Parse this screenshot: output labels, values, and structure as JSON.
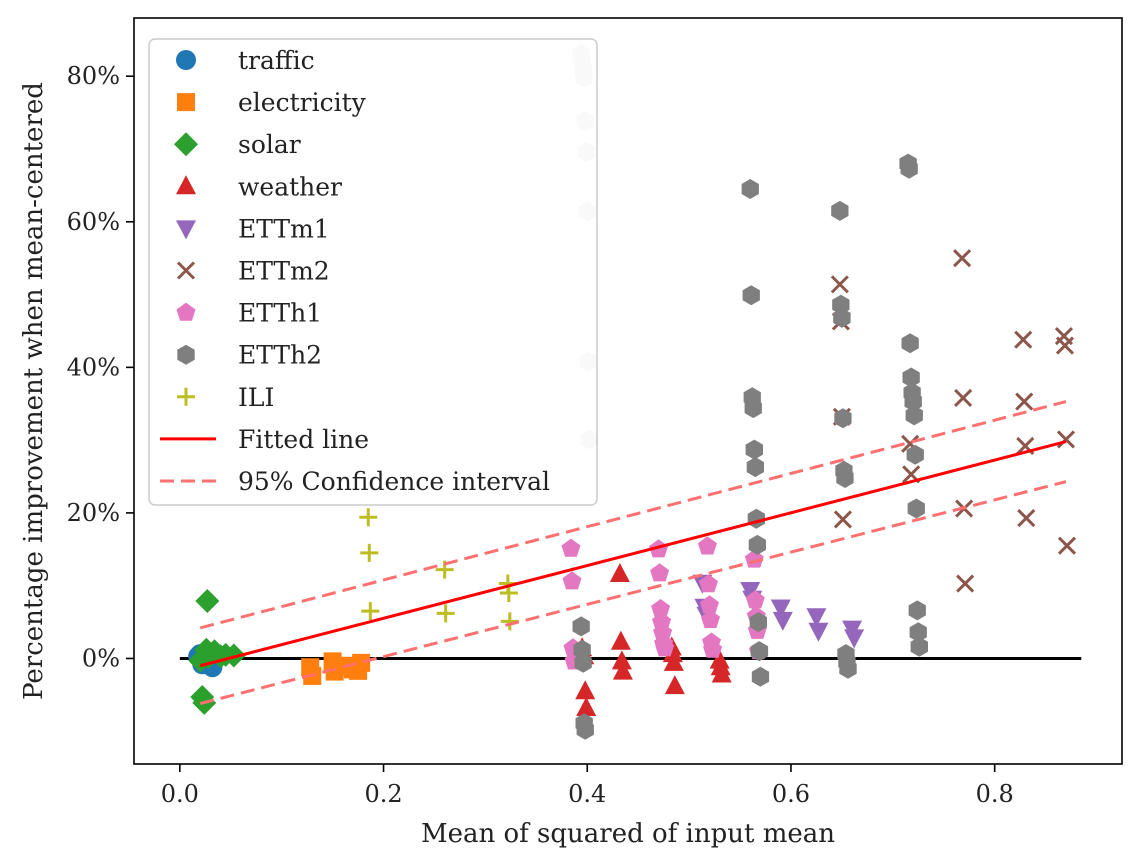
{
  "chart_data": {
    "type": "scatter",
    "xlabel": "Mean of squared of input mean",
    "ylabel": "Percentage improvement when mean-centered",
    "xlim": [
      -0.045,
      0.925
    ],
    "ylim": [
      -14.5,
      88
    ],
    "xticks": [
      0.0,
      0.2,
      0.4,
      0.6,
      0.8
    ],
    "xtick_labels": [
      "0.0",
      "0.2",
      "0.4",
      "0.6",
      "0.8"
    ],
    "yticks": [
      0,
      20,
      40,
      60,
      80
    ],
    "ytick_labels": [
      "0%",
      "20%",
      "40%",
      "60%",
      "80%"
    ],
    "legend_position": "upper-left",
    "series": [
      {
        "name": "traffic",
        "marker": "circle",
        "color": "#1f77b4",
        "points": [
          [
            0.018,
            0.3
          ],
          [
            0.022,
            -0.8
          ],
          [
            0.025,
            -0.3
          ],
          [
            0.028,
            0.8
          ],
          [
            0.032,
            -1.2
          ],
          [
            0.035,
            0.1
          ],
          [
            0.02,
            0.6
          ],
          [
            0.03,
            -0.5
          ]
        ]
      },
      {
        "name": "electricity",
        "marker": "square",
        "color": "#ff7f0e",
        "points": [
          [
            0.128,
            -1.2
          ],
          [
            0.13,
            -2.4
          ],
          [
            0.15,
            -0.4
          ],
          [
            0.152,
            -1.8
          ],
          [
            0.165,
            -1.0
          ],
          [
            0.17,
            -1.5
          ],
          [
            0.175,
            -1.7
          ],
          [
            0.178,
            -0.6
          ]
        ]
      },
      {
        "name": "solar",
        "marker": "diamond",
        "color": "#2ca02c",
        "points": [
          [
            0.027,
            7.9
          ],
          [
            0.022,
            -5.3
          ],
          [
            0.024,
            -6.1
          ],
          [
            0.026,
            1.2
          ],
          [
            0.03,
            0.6
          ],
          [
            0.034,
            1.0
          ],
          [
            0.04,
            0.3
          ],
          [
            0.045,
            0.5
          ],
          [
            0.053,
            0.4
          ],
          [
            0.02,
            -0.3
          ],
          [
            0.028,
            0.2
          ]
        ]
      },
      {
        "name": "weather",
        "marker": "triangle-up",
        "color": "#d62728",
        "points": [
          [
            0.395,
            1.4
          ],
          [
            0.397,
            0.3
          ],
          [
            0.398,
            -4.5
          ],
          [
            0.399,
            -6.8
          ],
          [
            0.432,
            11.6
          ],
          [
            0.433,
            2.3
          ],
          [
            0.434,
            -0.4
          ],
          [
            0.435,
            -1.8
          ],
          [
            0.483,
            1.5
          ],
          [
            0.484,
            0.6
          ],
          [
            0.485,
            -0.6
          ],
          [
            0.486,
            -3.8
          ],
          [
            0.53,
            -0.3
          ],
          [
            0.531,
            -1.2
          ],
          [
            0.532,
            -2.2
          ]
        ]
      },
      {
        "name": "ETTm1",
        "marker": "triangle-down",
        "color": "#9467bd",
        "points": [
          [
            0.513,
            10.4
          ],
          [
            0.515,
            7.1
          ],
          [
            0.517,
            6.0
          ],
          [
            0.56,
            9.4
          ],
          [
            0.562,
            8.2
          ],
          [
            0.59,
            7.0
          ],
          [
            0.592,
            5.3
          ],
          [
            0.625,
            5.8
          ],
          [
            0.627,
            3.8
          ],
          [
            0.66,
            4.1
          ],
          [
            0.662,
            2.9
          ]
        ]
      },
      {
        "name": "ETTm2",
        "marker": "x",
        "color": "#8c564b",
        "points": [
          [
            0.648,
            51.4
          ],
          [
            0.649,
            46.3
          ],
          [
            0.65,
            33.2
          ],
          [
            0.651,
            19.1
          ],
          [
            0.717,
            29.5
          ],
          [
            0.718,
            25.3
          ],
          [
            0.768,
            55.0
          ],
          [
            0.769,
            35.8
          ],
          [
            0.77,
            20.6
          ],
          [
            0.771,
            10.3
          ],
          [
            0.828,
            43.8
          ],
          [
            0.829,
            35.3
          ],
          [
            0.83,
            29.2
          ],
          [
            0.831,
            19.3
          ],
          [
            0.868,
            44.3
          ],
          [
            0.869,
            43.0
          ],
          [
            0.87,
            30.1
          ],
          [
            0.871,
            15.5
          ]
        ]
      },
      {
        "name": "ETTh1",
        "marker": "pentagon",
        "color": "#e377c2",
        "points": [
          [
            0.384,
            15.1
          ],
          [
            0.385,
            10.6
          ],
          [
            0.386,
            1.4
          ],
          [
            0.387,
            -0.4
          ],
          [
            0.47,
            15.0
          ],
          [
            0.471,
            11.7
          ],
          [
            0.472,
            6.8
          ],
          [
            0.473,
            5.0
          ],
          [
            0.474,
            3.5
          ],
          [
            0.475,
            2.0
          ],
          [
            0.476,
            1.4
          ],
          [
            0.518,
            15.4
          ],
          [
            0.519,
            10.2
          ],
          [
            0.52,
            7.3
          ],
          [
            0.521,
            5.3
          ],
          [
            0.522,
            2.2
          ],
          [
            0.523,
            1.2
          ],
          [
            0.564,
            13.6
          ],
          [
            0.565,
            8.0
          ],
          [
            0.566,
            5.8
          ],
          [
            0.567,
            3.8
          ],
          [
            0.568,
            1.0
          ]
        ]
      },
      {
        "name": "ETTh2",
        "marker": "hexagon",
        "color": "#7f7f7f",
        "points": [
          [
            0.394,
            4.4
          ],
          [
            0.395,
            1.2
          ],
          [
            0.396,
            -0.6
          ],
          [
            0.397,
            -8.9
          ],
          [
            0.398,
            -9.8
          ],
          [
            0.56,
            64.5
          ],
          [
            0.561,
            49.9
          ],
          [
            0.562,
            35.9
          ],
          [
            0.563,
            34.4
          ],
          [
            0.564,
            28.7
          ],
          [
            0.565,
            26.3
          ],
          [
            0.566,
            19.2
          ],
          [
            0.567,
            15.6
          ],
          [
            0.568,
            5.0
          ],
          [
            0.569,
            1.0
          ],
          [
            0.57,
            -2.5
          ],
          [
            0.648,
            61.5
          ],
          [
            0.649,
            48.6
          ],
          [
            0.65,
            46.8
          ],
          [
            0.651,
            33.0
          ],
          [
            0.652,
            25.8
          ],
          [
            0.653,
            24.8
          ],
          [
            0.654,
            0.6
          ],
          [
            0.655,
            -0.5
          ],
          [
            0.656,
            -1.4
          ],
          [
            0.715,
            68.0
          ],
          [
            0.716,
            67.3
          ],
          [
            0.717,
            43.3
          ],
          [
            0.718,
            38.6
          ],
          [
            0.719,
            36.5
          ],
          [
            0.72,
            35.3
          ],
          [
            0.721,
            33.4
          ],
          [
            0.722,
            28.0
          ],
          [
            0.723,
            20.6
          ],
          [
            0.724,
            6.6
          ],
          [
            0.725,
            3.6
          ],
          [
            0.726,
            1.6
          ]
        ]
      },
      {
        "name": "ETTh2-faded",
        "legend": false,
        "marker": "hexagon",
        "color": "#dddddd",
        "points": [
          [
            0.394,
            83.0
          ],
          [
            0.395,
            82.0
          ],
          [
            0.396,
            80.8
          ],
          [
            0.397,
            79.8
          ],
          [
            0.398,
            73.8
          ],
          [
            0.399,
            69.6
          ],
          [
            0.4,
            61.4
          ],
          [
            0.401,
            40.8
          ],
          [
            0.402,
            30.1
          ]
        ]
      },
      {
        "name": "ILI",
        "marker": "plus",
        "color": "#bcbd22",
        "points": [
          [
            0.185,
            19.4
          ],
          [
            0.186,
            14.5
          ],
          [
            0.187,
            6.5
          ],
          [
            0.26,
            12.2
          ],
          [
            0.261,
            6.2
          ],
          [
            0.322,
            10.3
          ],
          [
            0.323,
            9.0
          ],
          [
            0.324,
            5.1
          ]
        ]
      }
    ],
    "fitted_line": {
      "name": "Fitted line",
      "color": "#ff0000",
      "x": [
        0.02,
        0.87
      ],
      "y": [
        -1.0,
        29.8
      ]
    },
    "confidence_interval": {
      "name": "95% Confidence interval",
      "color": "#ff7070",
      "upper": {
        "x": [
          0.02,
          0.87
        ],
        "y": [
          4.2,
          35.3
        ]
      },
      "lower": {
        "x": [
          0.02,
          0.87
        ],
        "y": [
          -6.2,
          24.3
        ]
      }
    },
    "zero_line": {
      "color": "#000000",
      "x": [
        0.0,
        0.885
      ],
      "y": 0
    }
  }
}
